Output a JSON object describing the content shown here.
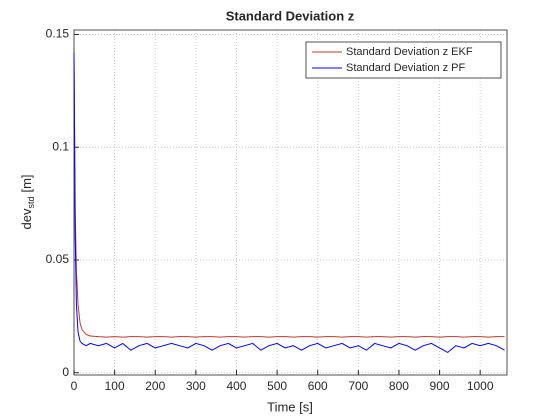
{
  "chart_data": {
    "type": "line",
    "title": "Standard Deviation z",
    "x_label": "Time [s]",
    "y_label": {
      "text": "dev",
      "subscript": "std",
      "suffix": "[m]"
    },
    "x": [
      0,
      3,
      6,
      10,
      15,
      20,
      30,
      40,
      60,
      80,
      100,
      120,
      140,
      160,
      180,
      200,
      220,
      240,
      260,
      280,
      300,
      320,
      340,
      360,
      380,
      400,
      420,
      440,
      460,
      480,
      500,
      520,
      540,
      560,
      580,
      600,
      620,
      640,
      660,
      680,
      700,
      720,
      740,
      760,
      780,
      800,
      820,
      840,
      860,
      880,
      900,
      920,
      940,
      960,
      980,
      1000,
      1020,
      1040,
      1060
    ],
    "series": [
      {
        "name": "Standard Deviation z EKF",
        "color": "#c0392b",
        "values": [
          0.14,
          0.07,
          0.045,
          0.03,
          0.022,
          0.019,
          0.017,
          0.0163,
          0.016,
          0.0158,
          0.016,
          0.0158,
          0.016,
          0.016,
          0.0158,
          0.016,
          0.016,
          0.0158,
          0.016,
          0.016,
          0.0158,
          0.016,
          0.016,
          0.0158,
          0.016,
          0.016,
          0.0158,
          0.016,
          0.016,
          0.0158,
          0.016,
          0.016,
          0.0158,
          0.016,
          0.016,
          0.0158,
          0.016,
          0.016,
          0.0158,
          0.016,
          0.016,
          0.0158,
          0.016,
          0.016,
          0.0158,
          0.016,
          0.016,
          0.0158,
          0.016,
          0.016,
          0.0158,
          0.016,
          0.016,
          0.0158,
          0.016,
          0.016,
          0.0158,
          0.016,
          0.016
        ]
      },
      {
        "name": "Standard Deviation z PF",
        "color": "#0000ff",
        "values": [
          0.142,
          0.06,
          0.03,
          0.018,
          0.014,
          0.013,
          0.012,
          0.013,
          0.012,
          0.013,
          0.011,
          0.013,
          0.01,
          0.012,
          0.013,
          0.011,
          0.012,
          0.013,
          0.012,
          0.011,
          0.013,
          0.012,
          0.01,
          0.012,
          0.013,
          0.011,
          0.012,
          0.013,
          0.01,
          0.012,
          0.013,
          0.011,
          0.012,
          0.01,
          0.012,
          0.013,
          0.011,
          0.012,
          0.013,
          0.011,
          0.012,
          0.01,
          0.013,
          0.012,
          0.011,
          0.013,
          0.012,
          0.01,
          0.012,
          0.013,
          0.011,
          0.009,
          0.012,
          0.011,
          0.013,
          0.012,
          0.013,
          0.012,
          0.01
        ]
      }
    ],
    "xlim": [
      0,
      1066
    ],
    "ylim": [
      -0.001,
      0.152
    ],
    "xticks": [
      0,
      100,
      200,
      300,
      400,
      500,
      600,
      700,
      800,
      900,
      1000
    ],
    "yticks": [
      0,
      0.05,
      0.1,
      0.15
    ],
    "grid": true,
    "legend": "top-right"
  }
}
